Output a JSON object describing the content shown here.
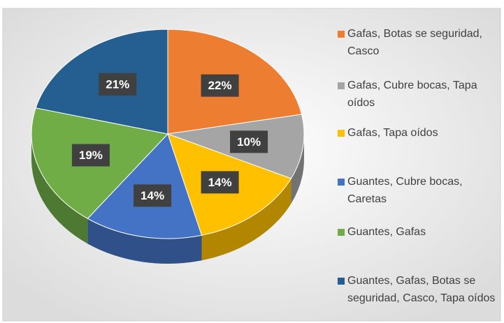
{
  "chart_data": {
    "type": "pie3d",
    "categories": [
      "Gafas, Botas se seguridad, Casco",
      "Gafas, Cubre bocas, Tapa oídos",
      "Gafas, Tapa oídos",
      "Guantes, Cubre bocas, Caretas",
      "Guantes, Gafas",
      "Guantes, Gafas, Botas se seguridad, Casco, Tapa oídos"
    ],
    "values": [
      22,
      10,
      14,
      14,
      19,
      21
    ],
    "value_labels": [
      "22%",
      "10%",
      "14%",
      "14%",
      "19%",
      "21%"
    ],
    "colors": [
      "#ED7D31",
      "#A5A5A5",
      "#FFC000",
      "#4472C4",
      "#70AD47",
      "#255E91"
    ],
    "legend": "right"
  }
}
